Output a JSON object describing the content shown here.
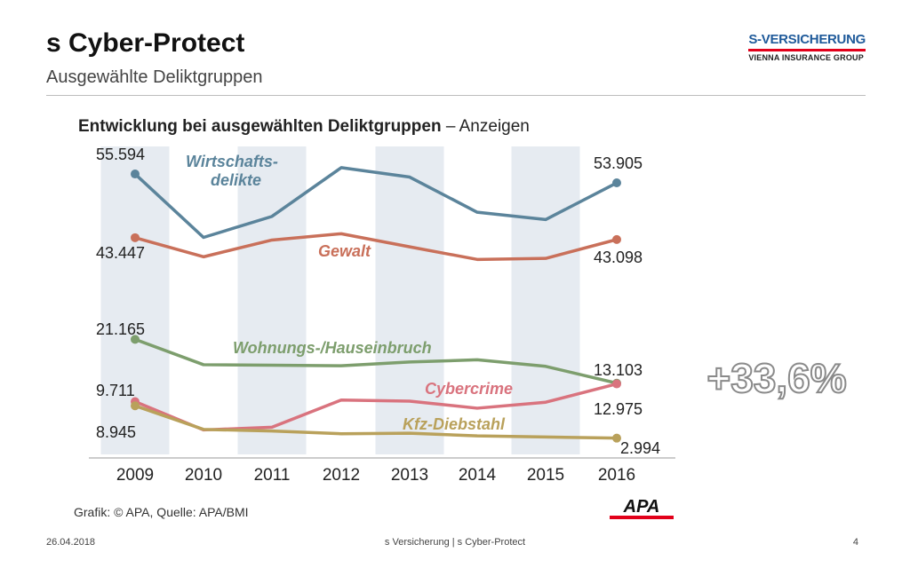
{
  "slide": {
    "title": "s Cyber-Protect",
    "subtitle": "Ausgewählte Deliktgruppen"
  },
  "logo": {
    "main": "S-VERSICHERUNG",
    "sub": "VIENNA INSURANCE GROUP",
    "colors": {
      "blue": "#1f5a9a",
      "red": "#e2001a"
    }
  },
  "callout": {
    "text": "+33,6%"
  },
  "source": {
    "text": "Grafik: © APA, Quelle: APA/BMI",
    "apa": "APA"
  },
  "footer": {
    "date": "26.04.2018",
    "center": "s Versicherung | s Cyber-Protect",
    "page": "4"
  },
  "chart_data": {
    "type": "line",
    "title": "Entwicklung bei ausgewählten Deliktgruppen",
    "title_suffix": " – Anzeigen",
    "x": [
      "2009",
      "2010",
      "2011",
      "2012",
      "2013",
      "2014",
      "2015",
      "2016"
    ],
    "grid": "alternating vertical bands",
    "series": [
      {
        "name": "Wirtschafts-\ndelikte",
        "color": "#5b849b",
        "values": [
          55594,
          43500,
          47500,
          56800,
          55000,
          48300,
          46900,
          53905
        ],
        "start_label": "55.594",
        "end_label": "53.905"
      },
      {
        "name": "Gewalt",
        "color": "#c9705a",
        "values": [
          43447,
          39800,
          43000,
          44200,
          41700,
          39300,
          39500,
          43098
        ],
        "start_label": "43.447",
        "end_label": "43.098"
      },
      {
        "name": "Wohnungs-/Hauseinbruch",
        "color": "#7d9e6d",
        "values": [
          21165,
          16500,
          16400,
          16300,
          17000,
          17400,
          16200,
          13103
        ],
        "start_label": "21.165",
        "end_label": "13.103"
      },
      {
        "name": "Cybercrime",
        "color": "#d9737e",
        "values": [
          9711,
          4500,
          5000,
          10000,
          9800,
          8500,
          9600,
          12975
        ],
        "start_label": "9.711",
        "end_label": "12.975"
      },
      {
        "name": "Kfz-Diebstahl",
        "color": "#b9a15b",
        "values": [
          8945,
          4600,
          4300,
          3800,
          3900,
          3400,
          3200,
          2994
        ],
        "start_label": "8.945",
        "end_label": "2.994"
      }
    ]
  }
}
